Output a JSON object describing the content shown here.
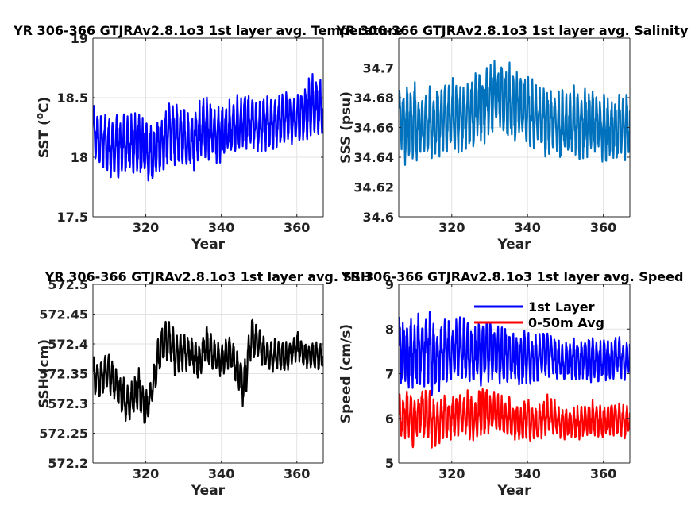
{
  "chart_data": [
    {
      "type": "line",
      "title": "YR 306-366 GTJRAv2.8.1o3 1st layer avg. Temperature",
      "xlabel": "Year",
      "ylabel": "SST (°C)",
      "ylabel_parts": [
        "SST (",
        "o",
        "C)"
      ],
      "xlim": [
        306,
        367
      ],
      "ylim": [
        17.5,
        19
      ],
      "xticks": [
        320,
        340,
        360
      ],
      "xtick_labels": [
        "320",
        "340",
        "360"
      ],
      "yticks": [
        17.5,
        18,
        18.5,
        19
      ],
      "ytick_labels": [
        "17.5",
        "18",
        "18.5",
        "19"
      ],
      "grid": true,
      "legend": null,
      "series": [
        {
          "color": "#0000ff",
          "x": [
            306,
            308,
            310,
            312,
            314,
            316,
            318,
            320,
            322,
            324,
            326,
            328,
            330,
            332,
            334,
            336,
            338,
            340,
            342,
            344,
            346,
            348,
            350,
            352,
            354,
            356,
            358,
            360,
            362,
            364,
            366,
            367
          ],
          "y": [
            18.2,
            18.15,
            18.1,
            18.12,
            18.08,
            18.1,
            18.12,
            18.05,
            18.02,
            18.1,
            18.18,
            18.2,
            18.15,
            18.12,
            18.2,
            18.25,
            18.18,
            18.22,
            18.25,
            18.28,
            18.3,
            18.27,
            18.25,
            18.3,
            18.28,
            18.33,
            18.3,
            18.32,
            18.35,
            18.42,
            18.45,
            18.35
          ],
          "band": [
            0.28,
            0.25,
            0.3,
            0.28,
            0.3,
            0.27,
            0.28,
            0.3,
            0.28,
            0.27,
            0.28,
            0.3,
            0.27,
            0.25,
            0.28,
            0.27,
            0.25,
            0.27,
            0.25,
            0.25,
            0.25,
            0.23,
            0.22,
            0.25,
            0.22,
            0.25,
            0.23,
            0.25,
            0.25,
            0.3,
            0.28,
            0.2
          ]
        }
      ]
    },
    {
      "type": "line",
      "title": "YR 306-366 GTJRAv2.8.1o3 1st layer avg. Salinity",
      "xlabel": "Year",
      "ylabel": "SSS (psu)",
      "xlim": [
        306,
        367
      ],
      "ylim": [
        34.6,
        34.72
      ],
      "xticks": [
        320,
        340,
        360
      ],
      "xtick_labels": [
        "320",
        "340",
        "360"
      ],
      "yticks": [
        34.6,
        34.62,
        34.64,
        34.66,
        34.68,
        34.7
      ],
      "ytick_labels": [
        "34.6",
        "34.62",
        "34.64",
        "34.66",
        "34.68",
        "34.7"
      ],
      "grid": true,
      "legend": null,
      "series": [
        {
          "color": "#0072bd",
          "x": [
            306,
            308,
            310,
            312,
            314,
            316,
            318,
            320,
            322,
            324,
            326,
            328,
            330,
            332,
            334,
            336,
            338,
            340,
            342,
            344,
            346,
            348,
            350,
            352,
            354,
            356,
            358,
            360,
            362,
            364,
            366,
            367
          ],
          "y": [
            34.662,
            34.662,
            34.665,
            34.66,
            34.663,
            34.665,
            34.665,
            34.668,
            34.665,
            34.668,
            34.672,
            34.675,
            34.678,
            34.68,
            34.678,
            34.676,
            34.674,
            34.672,
            34.668,
            34.664,
            34.662,
            34.662,
            34.663,
            34.665,
            34.662,
            34.664,
            34.662,
            34.66,
            34.658,
            34.66,
            34.662,
            34.662
          ],
          "band": [
            0.025,
            0.028,
            0.027,
            0.025,
            0.027,
            0.026,
            0.025,
            0.026,
            0.025,
            0.025,
            0.026,
            0.027,
            0.028,
            0.03,
            0.028,
            0.027,
            0.026,
            0.025,
            0.025,
            0.024,
            0.025,
            0.025,
            0.026,
            0.025,
            0.024,
            0.025,
            0.024,
            0.026,
            0.025,
            0.024,
            0.025,
            0.022
          ]
        }
      ]
    },
    {
      "type": "line",
      "title": "YR 306-366 GTJRAv2.8.1o3 1st layer avg. SSH",
      "xlabel": "Year",
      "ylabel": "SSH (cm)",
      "xlim": [
        306,
        367
      ],
      "ylim": [
        572.2,
        572.5
      ],
      "xticks": [
        320,
        340,
        360
      ],
      "xtick_labels": [
        "320",
        "340",
        "360"
      ],
      "yticks": [
        572.2,
        572.25,
        572.3,
        572.35,
        572.4,
        572.45,
        572.5
      ],
      "ytick_labels": [
        "572.2",
        "572.25",
        "572.3",
        "572.35",
        "572.4",
        "572.45",
        "572.5"
      ],
      "grid": true,
      "legend": null,
      "series": [
        {
          "color": "#000000",
          "x": [
            306,
            308,
            310,
            312,
            314,
            316,
            318,
            320,
            322,
            324,
            326,
            328,
            330,
            332,
            334,
            336,
            338,
            340,
            342,
            344,
            346,
            348,
            350,
            352,
            354,
            356,
            358,
            360,
            362,
            364,
            366,
            367
          ],
          "y": [
            572.35,
            572.34,
            572.36,
            572.33,
            572.31,
            572.3,
            572.33,
            572.29,
            572.33,
            572.4,
            572.41,
            572.38,
            572.39,
            572.38,
            572.37,
            572.4,
            572.38,
            572.37,
            572.39,
            572.36,
            572.33,
            572.41,
            572.4,
            572.38,
            572.38,
            572.38,
            572.38,
            572.4,
            572.38,
            572.38,
            572.38,
            572.38
          ],
          "band": [
            0.04,
            0.035,
            0.04,
            0.035,
            0.04,
            0.035,
            0.04,
            0.035,
            0.03,
            0.04,
            0.04,
            0.04,
            0.035,
            0.035,
            0.035,
            0.035,
            0.03,
            0.03,
            0.03,
            0.03,
            0.045,
            0.035,
            0.035,
            0.03,
            0.03,
            0.03,
            0.025,
            0.03,
            0.025,
            0.025,
            0.025,
            0.02
          ]
        }
      ]
    },
    {
      "type": "line",
      "title": "YR 306-366 GTJRAv2.8.1o3 1st layer avg. Speed",
      "xlabel": "Year",
      "ylabel": "Speed (cm/s)",
      "xlim": [
        306,
        367
      ],
      "ylim": [
        5,
        9
      ],
      "xticks": [
        320,
        340,
        360
      ],
      "xtick_labels": [
        "320",
        "340",
        "360"
      ],
      "yticks": [
        5,
        6,
        7,
        8,
        9
      ],
      "ytick_labels": [
        "5",
        "6",
        "7",
        "8",
        "9"
      ],
      "grid": true,
      "legend": "top-right",
      "series": [
        {
          "name": "1st Layer",
          "color": "#0000ff",
          "x": [
            306,
            308,
            310,
            312,
            314,
            316,
            318,
            320,
            322,
            324,
            326,
            328,
            330,
            332,
            334,
            336,
            338,
            340,
            342,
            344,
            346,
            348,
            350,
            352,
            354,
            356,
            358,
            360,
            362,
            364,
            366,
            367
          ],
          "y": [
            7.4,
            7.5,
            7.4,
            7.6,
            7.5,
            7.3,
            7.5,
            7.4,
            7.6,
            7.5,
            7.4,
            7.5,
            7.5,
            7.4,
            7.4,
            7.4,
            7.3,
            7.4,
            7.3,
            7.4,
            7.5,
            7.3,
            7.2,
            7.3,
            7.3,
            7.4,
            7.3,
            7.3,
            7.3,
            7.4,
            7.3,
            7.4
          ],
          "band": [
            0.9,
            0.8,
            0.9,
            0.9,
            1.0,
            0.8,
            0.9,
            0.7,
            0.8,
            0.8,
            0.7,
            0.8,
            0.7,
            0.7,
            0.7,
            0.6,
            0.6,
            0.7,
            0.6,
            0.6,
            0.6,
            0.5,
            0.5,
            0.5,
            0.5,
            0.6,
            0.5,
            0.5,
            0.5,
            0.5,
            0.5,
            0.5
          ]
        },
        {
          "name": "0-50m Avg",
          "color": "#ff0000",
          "x": [
            306,
            308,
            310,
            312,
            314,
            316,
            318,
            320,
            322,
            324,
            326,
            328,
            330,
            332,
            334,
            336,
            338,
            340,
            342,
            344,
            346,
            348,
            350,
            352,
            354,
            356,
            358,
            360,
            362,
            364,
            366,
            367
          ],
          "y": [
            6.0,
            6.1,
            5.9,
            6.1,
            6.0,
            5.8,
            6.0,
            6.0,
            6.1,
            6.1,
            6.0,
            6.2,
            6.1,
            6.1,
            6.0,
            6.0,
            5.9,
            6.0,
            5.9,
            6.0,
            6.1,
            5.9,
            5.9,
            5.9,
            5.9,
            6.0,
            6.0,
            5.9,
            6.0,
            6.0,
            5.9,
            6.0
          ],
          "band": [
            0.6,
            0.6,
            0.65,
            0.6,
            0.7,
            0.55,
            0.6,
            0.55,
            0.55,
            0.6,
            0.55,
            0.6,
            0.55,
            0.5,
            0.5,
            0.5,
            0.5,
            0.5,
            0.45,
            0.45,
            0.5,
            0.4,
            0.4,
            0.4,
            0.4,
            0.45,
            0.4,
            0.4,
            0.4,
            0.4,
            0.4,
            0.4
          ]
        }
      ]
    }
  ]
}
